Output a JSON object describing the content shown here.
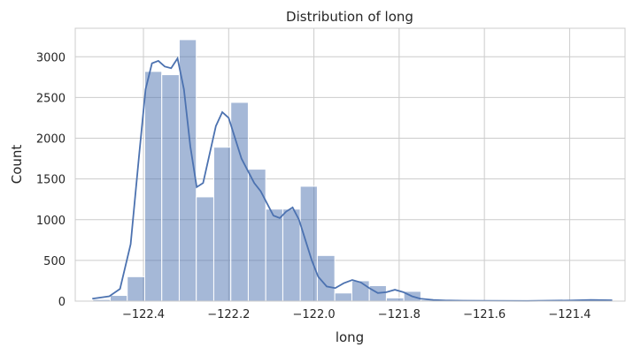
{
  "chart_data": {
    "type": "bar",
    "subtype": "histogram-with-kde",
    "title": "Distribution of long",
    "xlabel": "long",
    "ylabel": "Count",
    "xlim": [
      -122.56,
      -121.27
    ],
    "ylim": [
      0,
      3350
    ],
    "xticks": [
      -122.4,
      -122.2,
      -122.0,
      -121.8,
      -121.6,
      -121.4
    ],
    "xtick_labels": [
      "−122.4",
      "−122.2",
      "−122.0",
      "−121.8",
      "−121.6",
      "−121.4"
    ],
    "yticks": [
      0,
      500,
      1000,
      1500,
      2000,
      2500,
      3000
    ],
    "ytick_labels": [
      "0",
      "500",
      "1000",
      "1500",
      "2000",
      "2500",
      "3000"
    ],
    "grid": true,
    "legend": false,
    "bar_color": "#4c72b0",
    "bins": [
      {
        "x0": -122.519,
        "x1": -122.478,
        "count": 20
      },
      {
        "x0": -122.478,
        "x1": -122.438,
        "count": 70
      },
      {
        "x0": -122.438,
        "x1": -122.397,
        "count": 300
      },
      {
        "x0": -122.397,
        "x1": -122.357,
        "count": 2820
      },
      {
        "x0": -122.357,
        "x1": -122.316,
        "count": 2780
      },
      {
        "x0": -122.316,
        "x1": -122.276,
        "count": 3210
      },
      {
        "x0": -122.276,
        "x1": -122.235,
        "count": 1280
      },
      {
        "x0": -122.235,
        "x1": -122.195,
        "count": 1890
      },
      {
        "x0": -122.195,
        "x1": -122.154,
        "count": 2440
      },
      {
        "x0": -122.154,
        "x1": -122.113,
        "count": 1620
      },
      {
        "x0": -122.113,
        "x1": -122.073,
        "count": 1130
      },
      {
        "x0": -122.073,
        "x1": -122.032,
        "count": 1130
      },
      {
        "x0": -122.032,
        "x1": -121.992,
        "count": 1410
      },
      {
        "x0": -121.992,
        "x1": -121.951,
        "count": 560
      },
      {
        "x0": -121.951,
        "x1": -121.911,
        "count": 100
      },
      {
        "x0": -121.911,
        "x1": -121.87,
        "count": 250
      },
      {
        "x0": -121.87,
        "x1": -121.83,
        "count": 190
      },
      {
        "x0": -121.83,
        "x1": -121.789,
        "count": 40
      },
      {
        "x0": -121.789,
        "x1": -121.749,
        "count": 120
      },
      {
        "x0": -121.749,
        "x1": -121.708,
        "count": 15
      },
      {
        "x0": -121.708,
        "x1": -121.668,
        "count": 5
      },
      {
        "x0": -121.668,
        "x1": -121.627,
        "count": 3
      },
      {
        "x0": -121.627,
        "x1": -121.587,
        "count": 2
      },
      {
        "x0": -121.587,
        "x1": -121.546,
        "count": 2
      },
      {
        "x0": -121.546,
        "x1": -121.506,
        "count": 2
      },
      {
        "x0": -121.506,
        "x1": -121.465,
        "count": 1
      },
      {
        "x0": -121.465,
        "x1": -121.424,
        "count": 1
      },
      {
        "x0": -121.424,
        "x1": -121.384,
        "count": 1
      },
      {
        "x0": -121.384,
        "x1": -121.343,
        "count": 15
      },
      {
        "x0": -121.343,
        "x1": -121.303,
        "count": 20
      }
    ],
    "kde": {
      "x": [
        -122.52,
        -122.48,
        -122.455,
        -122.43,
        -122.41,
        -122.395,
        -122.38,
        -122.365,
        -122.35,
        -122.335,
        -122.32,
        -122.305,
        -122.29,
        -122.275,
        -122.26,
        -122.245,
        -122.23,
        -122.215,
        -122.2,
        -122.185,
        -122.17,
        -122.155,
        -122.14,
        -122.125,
        -122.11,
        -122.095,
        -122.08,
        -122.065,
        -122.05,
        -122.035,
        -122.02,
        -122.005,
        -121.99,
        -121.97,
        -121.95,
        -121.93,
        -121.91,
        -121.89,
        -121.87,
        -121.85,
        -121.83,
        -121.81,
        -121.79,
        -121.77,
        -121.75,
        -121.72,
        -121.69,
        -121.65,
        -121.6,
        -121.5,
        -121.4,
        -121.35,
        -121.3
      ],
      "y": [
        30,
        60,
        150,
        700,
        1800,
        2600,
        2920,
        2950,
        2880,
        2860,
        2980,
        2600,
        1900,
        1400,
        1450,
        1800,
        2150,
        2320,
        2250,
        2000,
        1750,
        1600,
        1450,
        1350,
        1200,
        1050,
        1020,
        1100,
        1150,
        1000,
        750,
        500,
        300,
        180,
        160,
        220,
        260,
        230,
        160,
        100,
        110,
        140,
        110,
        60,
        30,
        15,
        8,
        5,
        4,
        3,
        8,
        15,
        10
      ]
    }
  }
}
